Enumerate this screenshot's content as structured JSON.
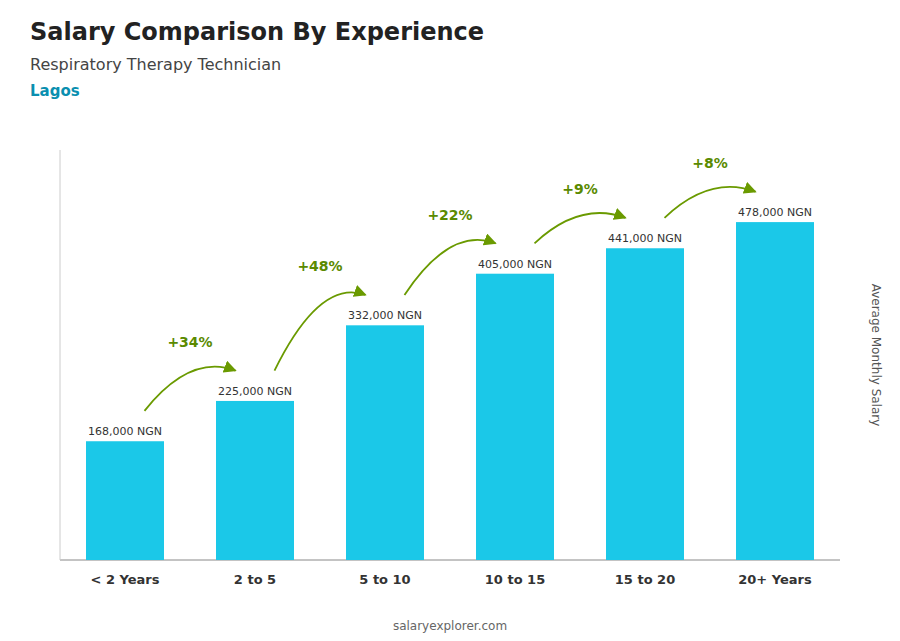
{
  "chart_data": {
    "type": "bar",
    "title": "Salary Comparison By Experience",
    "subtitle": "Respiratory Therapy Technician",
    "annotations": [
      "Lagos",
      "salaryexplorer.com"
    ],
    "ylabel": "Average Monthly Salary",
    "categories": [
      "< 2 Years",
      "2 to 5",
      "5 to 10",
      "10 to 15",
      "15 to 20",
      "20+ Years"
    ],
    "values": [
      168000,
      225000,
      332000,
      405000,
      441000,
      478000
    ],
    "value_labels": [
      "168,000 NGN",
      "225,000 NGN",
      "332,000 NGN",
      "405,000 NGN",
      "441,000 NGN",
      "478,000 NGN"
    ],
    "change_labels": [
      null,
      "+34%",
      "+48%",
      "+22%",
      "+9%",
      "+8%"
    ],
    "color": "#1BC8E8",
    "ylim": [
      0,
      580000
    ],
    "data_labels": true,
    "tick_labels": "x",
    "grid": false
  }
}
